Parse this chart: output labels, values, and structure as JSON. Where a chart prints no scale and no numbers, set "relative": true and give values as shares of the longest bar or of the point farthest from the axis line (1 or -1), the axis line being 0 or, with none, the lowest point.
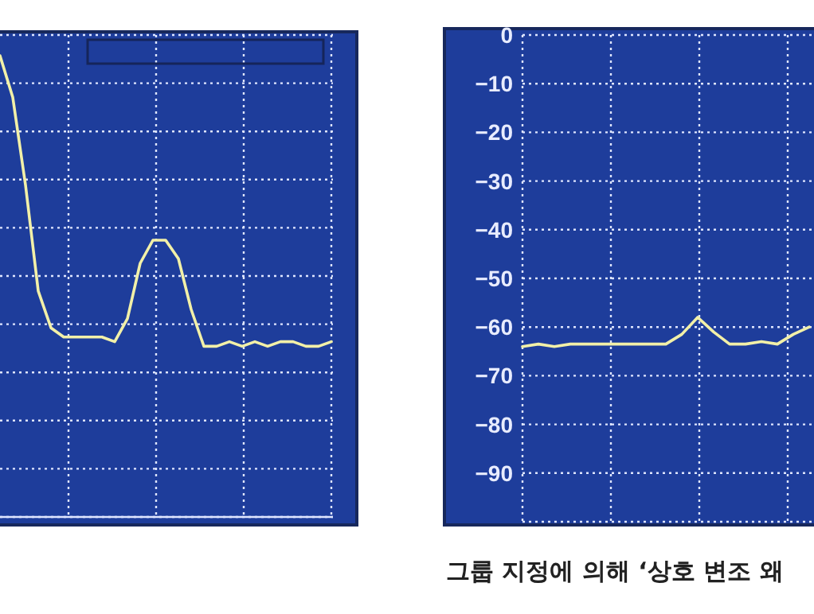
{
  "chart_data": [
    {
      "type": "line",
      "relative": true,
      "grid": true,
      "tick_labels": false,
      "categories": [
        null,
        null,
        null,
        null,
        null,
        null,
        null,
        null,
        null,
        null,
        null,
        null,
        null,
        null,
        null,
        null,
        null,
        null,
        null,
        null,
        null,
        null,
        null,
        null,
        null,
        null,
        null
      ],
      "series": [
        {
          "color": "#f2f0a8",
          "values": [
            1,
            0.91,
            0.72,
            0.49,
            0.41,
            0.39,
            0.39,
            0.39,
            0.39,
            0.38,
            0.43,
            0.55,
            0.6,
            0.6,
            0.56,
            0.45,
            0.37,
            0.37,
            0.38,
            0.37,
            0.38,
            0.37,
            0.38,
            0.38,
            0.37,
            0.37,
            0.38
          ]
        }
      ]
    },
    {
      "type": "line",
      "grid": true,
      "tick_labels": "y",
      "ylim": [
        -100,
        0
      ],
      "yticks": [
        0,
        -10,
        -20,
        -30,
        -40,
        -50,
        -60,
        -70,
        -80,
        -90
      ],
      "categories": [
        null,
        null,
        null,
        null,
        null,
        null,
        null,
        null,
        null,
        null,
        null,
        null,
        null,
        null,
        null,
        null,
        null,
        null,
        null
      ],
      "series": [
        {
          "color": "#f2f0a8",
          "values": [
            -64,
            -63.5,
            -64,
            -63.5,
            -63.5,
            -63.5,
            -63.5,
            -63.5,
            -63.5,
            -63.5,
            -61.5,
            -58,
            -61,
            -63.5,
            -63.5,
            -63,
            -63.5,
            -61.5,
            -60
          ]
        }
      ],
      "annotations": [
        "그룹 지정에 의해 ‘상호 변조 왜"
      ]
    }
  ]
}
